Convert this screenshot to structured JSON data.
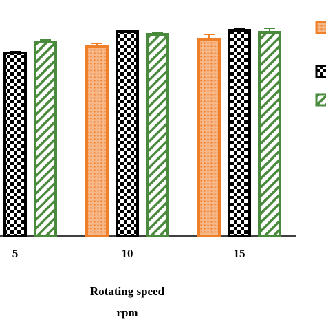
{
  "chart_data": {
    "type": "bar",
    "x_label": [
      "Rotating speed",
      "rpm"
    ],
    "categories": [
      "5",
      "10",
      "15"
    ],
    "ylim": [
      0,
      300
    ],
    "series": [
      {
        "color": "#f07f2a",
        "values": [
          null,
          275,
          286
        ],
        "errors": [
          null,
          5,
          7
        ]
      },
      {
        "color": "#000000",
        "values": [
          266,
          297,
          299
        ],
        "errors": [
          2,
          2,
          2
        ]
      },
      {
        "color": "#4a8a3c",
        "values": [
          282,
          293,
          296
        ],
        "errors": [
          3,
          3,
          6
        ]
      }
    ]
  }
}
